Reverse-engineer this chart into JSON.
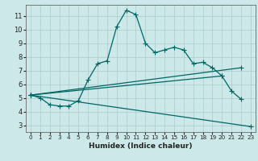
{
  "xlabel": "Humidex (Indice chaleur)",
  "bg_color": "#cce8e8",
  "grid_color": "#aacccc",
  "line_color": "#006666",
  "xlim": [
    -0.5,
    23.5
  ],
  "ylim": [
    2.5,
    11.8
  ],
  "xticks": [
    0,
    1,
    2,
    3,
    4,
    5,
    6,
    7,
    8,
    9,
    10,
    11,
    12,
    13,
    14,
    15,
    16,
    17,
    18,
    19,
    20,
    21,
    22,
    23
  ],
  "yticks": [
    3,
    4,
    5,
    6,
    7,
    8,
    9,
    10,
    11
  ],
  "line1_x": [
    0,
    1,
    2,
    3,
    4,
    5,
    6,
    7,
    8,
    9,
    10,
    11,
    12,
    13,
    14,
    15,
    16,
    17,
    18,
    19,
    20,
    21,
    22
  ],
  "line1_y": [
    5.2,
    5.0,
    4.5,
    4.4,
    4.4,
    4.8,
    6.3,
    7.5,
    7.7,
    10.2,
    11.4,
    11.1,
    9.0,
    8.3,
    8.5,
    8.7,
    8.5,
    7.5,
    7.6,
    7.2,
    6.6,
    5.5,
    4.9
  ],
  "line2_x": [
    0,
    20
  ],
  "line2_y": [
    5.2,
    6.6
  ],
  "line3_x": [
    0,
    22
  ],
  "line3_y": [
    5.2,
    7.2
  ],
  "line4_x": [
    0,
    23
  ],
  "line4_y": [
    5.2,
    2.9
  ],
  "marker_size": 4,
  "linewidth": 0.9
}
